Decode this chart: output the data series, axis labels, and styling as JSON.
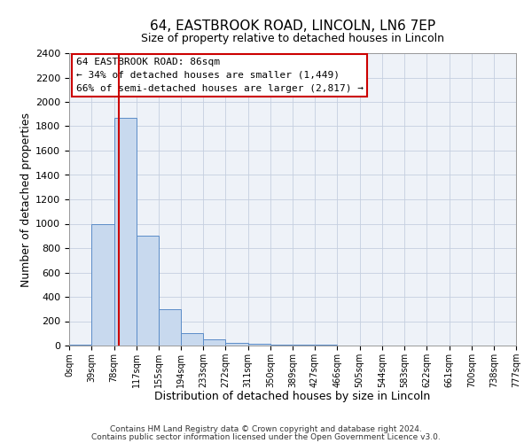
{
  "title": "64, EASTBROOK ROAD, LINCOLN, LN6 7EP",
  "subtitle": "Size of property relative to detached houses in Lincoln",
  "xlabel": "Distribution of detached houses by size in Lincoln",
  "ylabel": "Number of detached properties",
  "bin_edges": [
    0,
    39,
    78,
    117,
    155,
    194,
    233,
    272,
    311,
    350,
    389,
    427,
    466,
    505,
    544,
    583,
    622,
    661,
    700,
    738,
    777
  ],
  "bar_heights": [
    10,
    1000,
    1870,
    900,
    300,
    100,
    50,
    25,
    15,
    5,
    5,
    5,
    0,
    0,
    0,
    0,
    0,
    0,
    0,
    0
  ],
  "bar_color": "#c8d9ee",
  "bar_edge_color": "#5b8cc8",
  "vline_x": 86,
  "vline_color": "#cc0000",
  "ylim": [
    0,
    2400
  ],
  "xlim": [
    0,
    777
  ],
  "annotation_line1": "64 EASTBROOK ROAD: 86sqm",
  "annotation_line2": "← 34% of detached houses are smaller (1,449)",
  "annotation_line3": "66% of semi-detached houses are larger (2,817) →",
  "annotation_box_edge": "#cc0000",
  "footnote1": "Contains HM Land Registry data © Crown copyright and database right 2024.",
  "footnote2": "Contains public sector information licensed under the Open Government Licence v3.0.",
  "bg_color": "#eef2f8",
  "grid_color": "#c5cfdf",
  "title_fontsize": 11,
  "subtitle_fontsize": 9,
  "tick_labels": [
    "0sqm",
    "39sqm",
    "78sqm",
    "117sqm",
    "155sqm",
    "194sqm",
    "233sqm",
    "272sqm",
    "311sqm",
    "350sqm",
    "389sqm",
    "427sqm",
    "466sqm",
    "505sqm",
    "544sqm",
    "583sqm",
    "622sqm",
    "661sqm",
    "700sqm",
    "738sqm",
    "777sqm"
  ]
}
